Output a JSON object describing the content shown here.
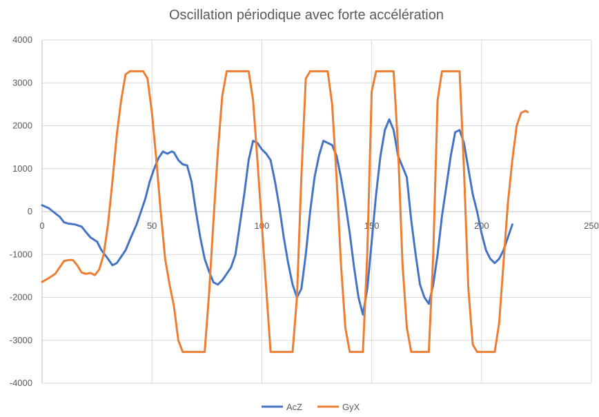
{
  "chart_data": {
    "type": "line",
    "title": "Oscillation périodique avec forte accélération",
    "xlabel": "",
    "ylabel": "",
    "xlim": [
      0,
      250
    ],
    "ylim": [
      -4000,
      4000
    ],
    "x_ticks": [
      0,
      50,
      100,
      150,
      200,
      250
    ],
    "y_ticks": [
      -4000,
      -3000,
      -2000,
      -1000,
      0,
      1000,
      2000,
      3000,
      4000
    ],
    "grid": true,
    "legend_position": "bottom",
    "series": [
      {
        "name": "AcZ",
        "color": "#4472C4",
        "points": [
          [
            0,
            150
          ],
          [
            3,
            80
          ],
          [
            6,
            -40
          ],
          [
            8,
            -120
          ],
          [
            10,
            -250
          ],
          [
            12,
            -280
          ],
          [
            15,
            -300
          ],
          [
            18,
            -350
          ],
          [
            20,
            -480
          ],
          [
            22,
            -600
          ],
          [
            25,
            -700
          ],
          [
            27,
            -900
          ],
          [
            30,
            -1100
          ],
          [
            32,
            -1250
          ],
          [
            34,
            -1200
          ],
          [
            36,
            -1050
          ],
          [
            38,
            -900
          ],
          [
            40,
            -650
          ],
          [
            43,
            -300
          ],
          [
            45,
            0
          ],
          [
            47,
            300
          ],
          [
            49,
            700
          ],
          [
            51,
            1000
          ],
          [
            53,
            1250
          ],
          [
            55,
            1400
          ],
          [
            57,
            1350
          ],
          [
            59,
            1400
          ],
          [
            60,
            1380
          ],
          [
            62,
            1200
          ],
          [
            64,
            1100
          ],
          [
            66,
            1080
          ],
          [
            68,
            700
          ],
          [
            70,
            0
          ],
          [
            72,
            -600
          ],
          [
            74,
            -1100
          ],
          [
            76,
            -1400
          ],
          [
            78,
            -1650
          ],
          [
            80,
            -1700
          ],
          [
            82,
            -1600
          ],
          [
            84,
            -1450
          ],
          [
            86,
            -1300
          ],
          [
            88,
            -1000
          ],
          [
            90,
            -300
          ],
          [
            92,
            400
          ],
          [
            94,
            1200
          ],
          [
            96,
            1650
          ],
          [
            98,
            1600
          ],
          [
            100,
            1450
          ],
          [
            102,
            1350
          ],
          [
            104,
            1200
          ],
          [
            106,
            700
          ],
          [
            108,
            100
          ],
          [
            110,
            -600
          ],
          [
            112,
            -1200
          ],
          [
            114,
            -1700
          ],
          [
            116,
            -2000
          ],
          [
            118,
            -1800
          ],
          [
            120,
            -1000
          ],
          [
            122,
            0
          ],
          [
            124,
            800
          ],
          [
            126,
            1300
          ],
          [
            128,
            1650
          ],
          [
            130,
            1600
          ],
          [
            132,
            1550
          ],
          [
            134,
            1300
          ],
          [
            136,
            800
          ],
          [
            138,
            200
          ],
          [
            140,
            -500
          ],
          [
            142,
            -1300
          ],
          [
            144,
            -2000
          ],
          [
            146,
            -2400
          ],
          [
            148,
            -1800
          ],
          [
            150,
            -700
          ],
          [
            152,
            400
          ],
          [
            154,
            1300
          ],
          [
            156,
            1900
          ],
          [
            158,
            2150
          ],
          [
            160,
            1900
          ],
          [
            162,
            1300
          ],
          [
            164,
            1050
          ],
          [
            166,
            800
          ],
          [
            168,
            -200
          ],
          [
            170,
            -1000
          ],
          [
            172,
            -1700
          ],
          [
            174,
            -2000
          ],
          [
            176,
            -2150
          ],
          [
            178,
            -1700
          ],
          [
            180,
            -1000
          ],
          [
            182,
            -100
          ],
          [
            184,
            600
          ],
          [
            186,
            1300
          ],
          [
            188,
            1850
          ],
          [
            190,
            1900
          ],
          [
            192,
            1600
          ],
          [
            194,
            1000
          ],
          [
            196,
            400
          ],
          [
            198,
            0
          ],
          [
            200,
            -500
          ],
          [
            202,
            -900
          ],
          [
            204,
            -1100
          ],
          [
            206,
            -1200
          ],
          [
            208,
            -1100
          ],
          [
            210,
            -900
          ],
          [
            212,
            -600
          ],
          [
            214,
            -300
          ]
        ]
      },
      {
        "name": "GyX",
        "color": "#ED7D31",
        "points": [
          [
            0,
            -1640
          ],
          [
            3,
            -1550
          ],
          [
            6,
            -1450
          ],
          [
            8,
            -1300
          ],
          [
            10,
            -1150
          ],
          [
            12,
            -1130
          ],
          [
            14,
            -1130
          ],
          [
            16,
            -1250
          ],
          [
            18,
            -1420
          ],
          [
            20,
            -1450
          ],
          [
            22,
            -1430
          ],
          [
            24,
            -1480
          ],
          [
            26,
            -1350
          ],
          [
            28,
            -1000
          ],
          [
            30,
            -300
          ],
          [
            32,
            700
          ],
          [
            34,
            1800
          ],
          [
            36,
            2600
          ],
          [
            38,
            3200
          ],
          [
            40,
            3270
          ],
          [
            42,
            3270
          ],
          [
            44,
            3270
          ],
          [
            46,
            3270
          ],
          [
            48,
            3100
          ],
          [
            50,
            2300
          ],
          [
            52,
            1200
          ],
          [
            54,
            0
          ],
          [
            56,
            -1100
          ],
          [
            58,
            -1700
          ],
          [
            60,
            -2200
          ],
          [
            62,
            -3000
          ],
          [
            64,
            -3270
          ],
          [
            66,
            -3270
          ],
          [
            68,
            -3270
          ],
          [
            70,
            -3270
          ],
          [
            72,
            -3270
          ],
          [
            74,
            -3270
          ],
          [
            76,
            -1900
          ],
          [
            78,
            -200
          ],
          [
            80,
            1400
          ],
          [
            82,
            2700
          ],
          [
            84,
            3270
          ],
          [
            86,
            3270
          ],
          [
            88,
            3270
          ],
          [
            90,
            3270
          ],
          [
            92,
            3270
          ],
          [
            94,
            3270
          ],
          [
            96,
            2600
          ],
          [
            98,
            1200
          ],
          [
            100,
            -300
          ],
          [
            102,
            -1800
          ],
          [
            104,
            -3270
          ],
          [
            106,
            -3270
          ],
          [
            108,
            -3270
          ],
          [
            110,
            -3270
          ],
          [
            112,
            -3270
          ],
          [
            114,
            -3270
          ],
          [
            116,
            -2000
          ],
          [
            118,
            800
          ],
          [
            120,
            3100
          ],
          [
            122,
            3270
          ],
          [
            124,
            3270
          ],
          [
            126,
            3270
          ],
          [
            128,
            3270
          ],
          [
            130,
            3270
          ],
          [
            132,
            2500
          ],
          [
            134,
            800
          ],
          [
            136,
            -1200
          ],
          [
            138,
            -2700
          ],
          [
            140,
            -3270
          ],
          [
            142,
            -3270
          ],
          [
            144,
            -3270
          ],
          [
            146,
            -3270
          ],
          [
            148,
            -1000
          ],
          [
            150,
            2800
          ],
          [
            152,
            3270
          ],
          [
            154,
            3270
          ],
          [
            156,
            3270
          ],
          [
            158,
            3270
          ],
          [
            160,
            3270
          ],
          [
            162,
            1500
          ],
          [
            164,
            -1200
          ],
          [
            166,
            -2700
          ],
          [
            168,
            -3270
          ],
          [
            170,
            -3270
          ],
          [
            172,
            -3270
          ],
          [
            174,
            -3270
          ],
          [
            176,
            -3270
          ],
          [
            178,
            -1000
          ],
          [
            180,
            2600
          ],
          [
            182,
            3270
          ],
          [
            184,
            3270
          ],
          [
            186,
            3270
          ],
          [
            188,
            3270
          ],
          [
            190,
            3270
          ],
          [
            192,
            1000
          ],
          [
            194,
            -1800
          ],
          [
            196,
            -3100
          ],
          [
            198,
            -3270
          ],
          [
            200,
            -3270
          ],
          [
            202,
            -3270
          ],
          [
            204,
            -3270
          ],
          [
            206,
            -3270
          ],
          [
            208,
            -2600
          ],
          [
            210,
            -1200
          ],
          [
            212,
            200
          ],
          [
            214,
            1200
          ],
          [
            216,
            2000
          ],
          [
            218,
            2300
          ],
          [
            220,
            2350
          ],
          [
            221,
            2320
          ]
        ]
      }
    ]
  }
}
